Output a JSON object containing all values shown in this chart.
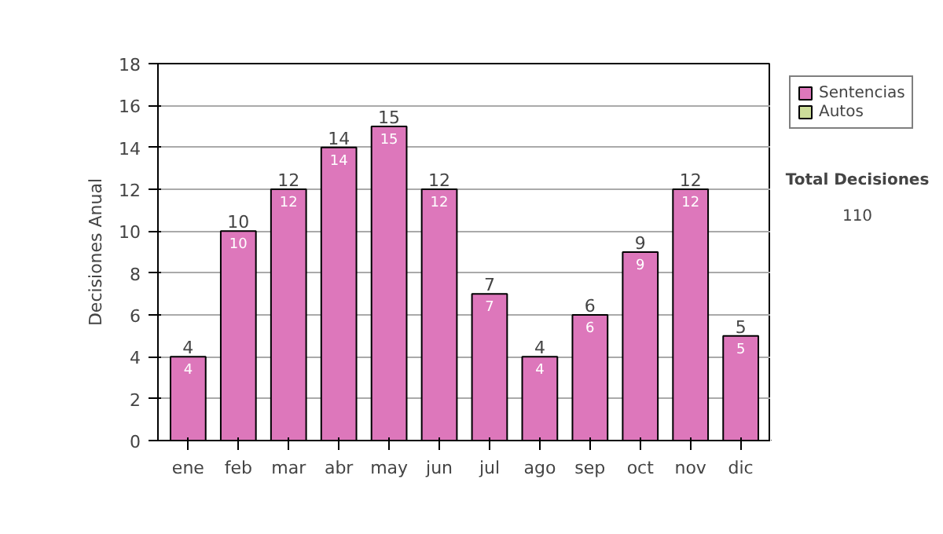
{
  "chart_data": {
    "type": "bar",
    "stacked": true,
    "ylabel": "Decisiones Anual",
    "categories": [
      "ene",
      "feb",
      "mar",
      "abr",
      "may",
      "jun",
      "jul",
      "ago",
      "sep",
      "oct",
      "nov",
      "dic"
    ],
    "series": [
      {
        "name": "Sentencias",
        "color": "#dd77bb",
        "values": [
          4,
          10,
          12,
          14,
          15,
          12,
          7,
          4,
          6,
          9,
          12,
          5
        ],
        "value_labels": [
          "4",
          "10",
          "12",
          "14",
          "15",
          "12",
          "7",
          "4",
          "6",
          "9",
          "12",
          "5"
        ]
      },
      {
        "name": "Autos",
        "color": "#ccdd99",
        "values": [
          0,
          0,
          0,
          0,
          0,
          0,
          0,
          0,
          0,
          0,
          0,
          0
        ]
      }
    ],
    "totals": [
      "4",
      "10",
      "12",
      "14",
      "15",
      "12",
      "7",
      "4",
      "6",
      "9",
      "12",
      "5"
    ],
    "ylim": [
      0,
      18
    ],
    "yticks": [
      0,
      2,
      4,
      6,
      8,
      10,
      12,
      14,
      16,
      18
    ],
    "grid": "y",
    "legend": "right",
    "annotations": [
      "Total Decisiones",
      "110"
    ]
  }
}
